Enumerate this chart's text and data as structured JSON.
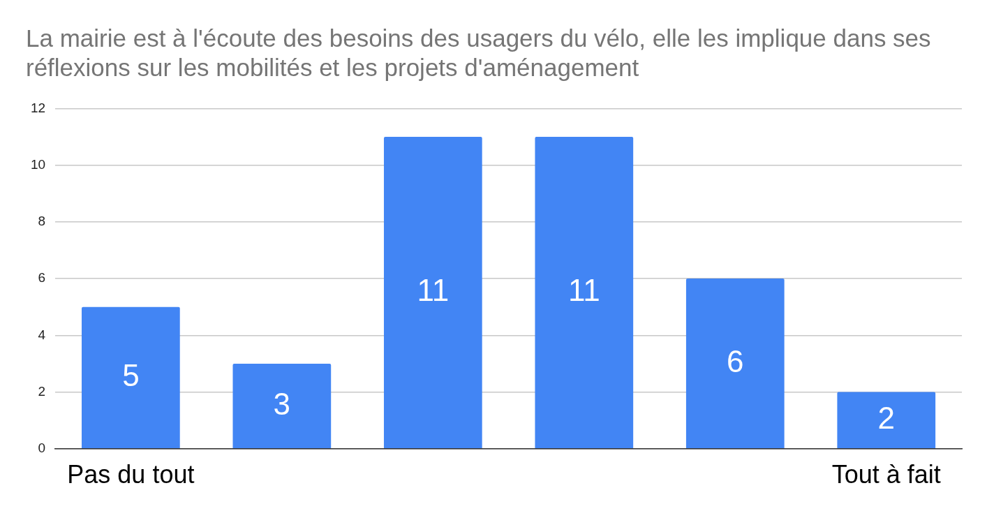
{
  "chart_data": {
    "type": "bar",
    "title": "La mairie est à l'écoute des besoins des usagers du vélo, elle les implique dans ses réflexions sur les mobilités et les projets d'aménagement",
    "categories": [
      "Pas du tout",
      null,
      null,
      null,
      null,
      "Tout à fait"
    ],
    "values": [
      5,
      3,
      11,
      11,
      6,
      2
    ],
    "color": "#4285f4",
    "ylim": [
      0,
      12
    ],
    "yticks": [
      0,
      2,
      4,
      6,
      8,
      10,
      12
    ],
    "grid": "y",
    "data_labels": true
  }
}
